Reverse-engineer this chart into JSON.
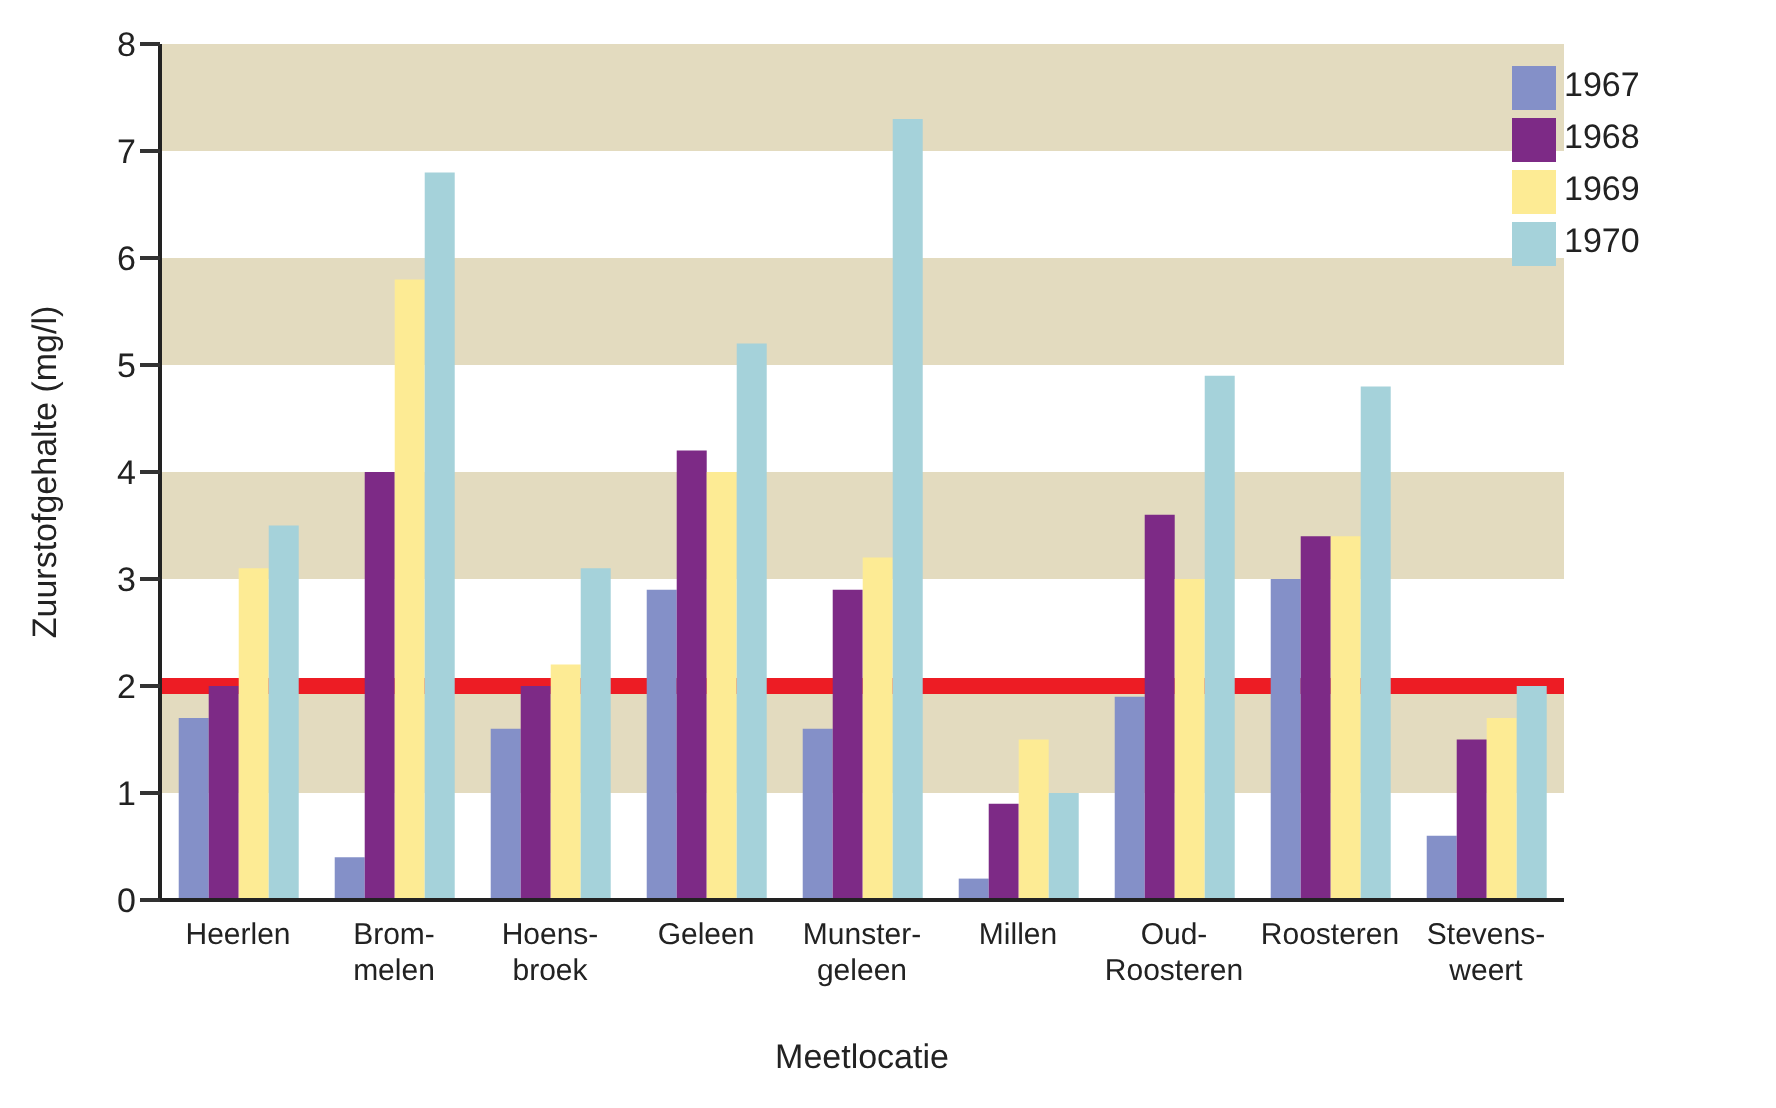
{
  "chart_data": {
    "type": "bar",
    "xlabel": "Meetlocatie",
    "ylabel": "Zuurstofgehalte (mg/l)",
    "categories": [
      "Heerlen",
      "Brom-\nmelen",
      "Hoens-\nbroek",
      "Geleen",
      "Munster-\ngeleen",
      "Millen",
      "Oud-\nRoosteren",
      "Roosteren",
      "Stevens-\nweert"
    ],
    "series": [
      {
        "name": "1967",
        "color": "#8490c8",
        "values": [
          1.7,
          0.4,
          1.6,
          2.9,
          1.6,
          0.2,
          1.9,
          3.0,
          0.6
        ]
      },
      {
        "name": "1968",
        "color": "#7d2a86",
        "values": [
          2.0,
          4.0,
          2.0,
          4.2,
          2.9,
          0.9,
          3.6,
          3.4,
          1.5
        ]
      },
      {
        "name": "1969",
        "color": "#fdeb94",
        "values": [
          3.1,
          5.8,
          2.2,
          4.0,
          3.2,
          1.5,
          3.0,
          3.4,
          1.7
        ]
      },
      {
        "name": "1970",
        "color": "#a5d2da",
        "values": [
          3.5,
          6.8,
          3.1,
          5.2,
          7.3,
          1.0,
          4.9,
          4.8,
          2.0
        ]
      }
    ],
    "ylim": [
      0,
      8
    ],
    "yticks": [
      0,
      1,
      2,
      3,
      4,
      5,
      6,
      7,
      8
    ],
    "bands": [
      {
        "axis": "y",
        "from": 1,
        "to": 2,
        "color": "#e3dbbf"
      },
      {
        "axis": "y",
        "from": 3,
        "to": 4,
        "color": "#e3dbbf"
      },
      {
        "axis": "y",
        "from": 5,
        "to": 6,
        "color": "#e3dbbf"
      },
      {
        "axis": "y",
        "from": 7,
        "to": 8,
        "color": "#e3dbbf"
      }
    ],
    "ref_lines": [
      {
        "axis": "y",
        "value": 2,
        "color": "#ed1c24"
      }
    ],
    "legend": "top right",
    "grid": false
  }
}
